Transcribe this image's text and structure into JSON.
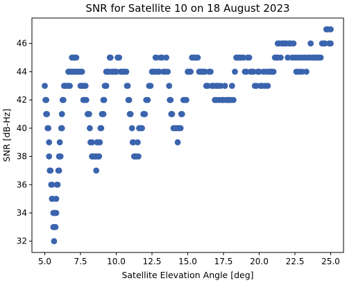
{
  "chart_data": {
    "type": "scatter",
    "title": "SNR for Satellite 10 on 18 August 2023",
    "xlabel": "Satellite Elevation Angle [deg]",
    "ylabel": "SNR [dB-Hz]",
    "xlim": [
      4.1,
      25.9
    ],
    "ylim": [
      31.2,
      47.8
    ],
    "x_ticks": [
      5.0,
      7.5,
      10.0,
      12.5,
      15.0,
      17.5,
      20.0,
      22.5,
      25.0
    ],
    "x_tick_labels": [
      "5.0",
      "7.5",
      "10.0",
      "12.5",
      "15.0",
      "17.5",
      "20.0",
      "22.5",
      "25.0"
    ],
    "y_ticks": [
      32,
      34,
      36,
      38,
      40,
      42,
      44,
      46
    ],
    "y_tick_labels": [
      "32",
      "34",
      "36",
      "38",
      "40",
      "42",
      "44",
      "46"
    ],
    "grid": false,
    "marker_color": "#3a64ad",
    "points": [
      [
        5.0,
        43
      ],
      [
        5.05,
        42
      ],
      [
        5.1,
        42
      ],
      [
        5.1,
        41
      ],
      [
        5.15,
        41
      ],
      [
        5.2,
        40
      ],
      [
        5.25,
        40
      ],
      [
        5.3,
        39
      ],
      [
        5.3,
        38
      ],
      [
        5.35,
        37
      ],
      [
        5.4,
        37
      ],
      [
        5.45,
        36
      ],
      [
        5.5,
        36
      ],
      [
        5.5,
        35
      ],
      [
        5.55,
        35
      ],
      [
        5.6,
        34
      ],
      [
        5.6,
        33
      ],
      [
        5.65,
        33
      ],
      [
        5.65,
        32
      ],
      [
        5.7,
        34
      ],
      [
        5.75,
        33
      ],
      [
        5.8,
        34
      ],
      [
        5.8,
        35
      ],
      [
        5.85,
        36
      ],
      [
        5.9,
        36
      ],
      [
        5.95,
        37
      ],
      [
        6.0,
        37
      ],
      [
        6.0,
        38
      ],
      [
        6.05,
        39
      ],
      [
        6.1,
        38
      ],
      [
        6.15,
        40
      ],
      [
        6.2,
        40
      ],
      [
        6.2,
        41
      ],
      [
        6.25,
        42
      ],
      [
        6.3,
        42
      ],
      [
        6.35,
        43
      ],
      [
        6.4,
        43
      ],
      [
        6.5,
        43
      ],
      [
        6.6,
        43
      ],
      [
        6.65,
        44
      ],
      [
        6.7,
        44
      ],
      [
        6.75,
        43
      ],
      [
        6.8,
        44
      ],
      [
        6.85,
        44
      ],
      [
        6.9,
        45
      ],
      [
        7.0,
        45
      ],
      [
        7.1,
        45
      ],
      [
        7.2,
        45
      ],
      [
        7.0,
        44
      ],
      [
        7.1,
        44
      ],
      [
        7.2,
        44
      ],
      [
        7.3,
        44
      ],
      [
        7.4,
        44
      ],
      [
        7.5,
        44
      ],
      [
        7.6,
        44
      ],
      [
        7.5,
        43
      ],
      [
        7.6,
        43
      ],
      [
        7.7,
        43
      ],
      [
        7.7,
        42
      ],
      [
        7.8,
        42
      ],
      [
        7.85,
        43
      ],
      [
        7.9,
        42
      ],
      [
        8.0,
        41
      ],
      [
        8.1,
        41
      ],
      [
        8.15,
        40
      ],
      [
        8.2,
        39
      ],
      [
        8.3,
        38
      ],
      [
        8.3,
        39
      ],
      [
        8.4,
        38
      ],
      [
        8.5,
        38
      ],
      [
        8.6,
        38
      ],
      [
        8.6,
        37
      ],
      [
        8.65,
        39
      ],
      [
        8.7,
        39
      ],
      [
        8.75,
        38
      ],
      [
        8.8,
        38
      ],
      [
        8.85,
        39
      ],
      [
        8.9,
        40
      ],
      [
        8.95,
        40
      ],
      [
        9.0,
        41
      ],
      [
        9.1,
        41
      ],
      [
        9.1,
        42
      ],
      [
        9.15,
        42
      ],
      [
        9.2,
        43
      ],
      [
        9.3,
        43
      ],
      [
        9.3,
        44
      ],
      [
        9.4,
        44
      ],
      [
        9.5,
        44
      ],
      [
        9.55,
        45
      ],
      [
        9.6,
        45
      ],
      [
        9.7,
        44
      ],
      [
        9.8,
        44
      ],
      [
        9.9,
        44
      ],
      [
        10.0,
        44
      ],
      [
        10.1,
        45
      ],
      [
        10.2,
        45
      ],
      [
        10.3,
        44
      ],
      [
        10.4,
        44
      ],
      [
        10.5,
        44
      ],
      [
        10.6,
        44
      ],
      [
        10.7,
        44
      ],
      [
        10.75,
        43
      ],
      [
        10.8,
        43
      ],
      [
        10.85,
        42
      ],
      [
        10.9,
        42
      ],
      [
        10.95,
        41
      ],
      [
        11.0,
        41
      ],
      [
        11.1,
        40
      ],
      [
        11.15,
        39
      ],
      [
        11.2,
        39
      ],
      [
        11.25,
        38
      ],
      [
        11.3,
        38
      ],
      [
        11.35,
        38
      ],
      [
        11.4,
        38
      ],
      [
        11.5,
        39
      ],
      [
        11.55,
        38
      ],
      [
        11.6,
        40
      ],
      [
        11.7,
        40
      ],
      [
        11.8,
        40
      ],
      [
        11.9,
        41
      ],
      [
        12.0,
        41
      ],
      [
        12.1,
        42
      ],
      [
        12.2,
        42
      ],
      [
        12.3,
        43
      ],
      [
        12.4,
        43
      ],
      [
        12.5,
        44
      ],
      [
        12.6,
        44
      ],
      [
        12.7,
        44
      ],
      [
        12.75,
        45
      ],
      [
        12.8,
        45
      ],
      [
        12.9,
        44
      ],
      [
        13.0,
        44
      ],
      [
        13.1,
        45
      ],
      [
        13.2,
        45
      ],
      [
        13.3,
        44
      ],
      [
        13.4,
        44
      ],
      [
        13.5,
        45
      ],
      [
        13.6,
        44
      ],
      [
        13.7,
        43
      ],
      [
        13.75,
        42
      ],
      [
        13.8,
        42
      ],
      [
        13.85,
        41
      ],
      [
        13.9,
        41
      ],
      [
        14.0,
        40
      ],
      [
        14.1,
        40
      ],
      [
        14.2,
        40
      ],
      [
        14.3,
        39
      ],
      [
        14.3,
        40
      ],
      [
        14.4,
        40
      ],
      [
        14.5,
        40
      ],
      [
        14.55,
        41
      ],
      [
        14.6,
        41
      ],
      [
        14.7,
        42
      ],
      [
        14.8,
        42
      ],
      [
        14.9,
        42
      ],
      [
        15.0,
        44
      ],
      [
        15.1,
        44
      ],
      [
        15.2,
        44
      ],
      [
        15.3,
        45
      ],
      [
        15.4,
        45
      ],
      [
        15.5,
        45
      ],
      [
        15.6,
        45
      ],
      [
        15.7,
        45
      ],
      [
        15.8,
        44
      ],
      [
        15.9,
        44
      ],
      [
        16.0,
        44
      ],
      [
        16.1,
        44
      ],
      [
        16.2,
        44
      ],
      [
        16.3,
        43
      ],
      [
        16.4,
        43
      ],
      [
        16.5,
        44
      ],
      [
        16.6,
        44
      ],
      [
        16.7,
        43
      ],
      [
        16.8,
        43
      ],
      [
        16.9,
        42
      ],
      [
        17.0,
        42
      ],
      [
        17.0,
        43
      ],
      [
        17.1,
        43
      ],
      [
        17.2,
        42
      ],
      [
        17.3,
        43
      ],
      [
        17.4,
        42
      ],
      [
        17.5,
        42
      ],
      [
        17.6,
        43
      ],
      [
        17.7,
        42
      ],
      [
        17.8,
        42
      ],
      [
        17.9,
        42
      ],
      [
        18.0,
        42
      ],
      [
        18.1,
        43
      ],
      [
        18.2,
        42
      ],
      [
        18.3,
        44
      ],
      [
        18.4,
        45
      ],
      [
        18.5,
        45
      ],
      [
        18.6,
        45
      ],
      [
        18.7,
        45
      ],
      [
        18.8,
        45
      ],
      [
        18.9,
        45
      ],
      [
        19.0,
        44
      ],
      [
        19.1,
        44
      ],
      [
        19.2,
        45
      ],
      [
        19.3,
        45
      ],
      [
        19.4,
        44
      ],
      [
        19.5,
        44
      ],
      [
        19.6,
        44
      ],
      [
        19.7,
        43
      ],
      [
        19.8,
        43
      ],
      [
        19.9,
        44
      ],
      [
        20.0,
        44
      ],
      [
        20.1,
        43
      ],
      [
        20.2,
        43
      ],
      [
        20.3,
        44
      ],
      [
        20.4,
        43
      ],
      [
        20.5,
        44
      ],
      [
        20.6,
        43
      ],
      [
        20.7,
        44
      ],
      [
        20.8,
        44
      ],
      [
        20.9,
        44
      ],
      [
        21.0,
        44
      ],
      [
        21.1,
        45
      ],
      [
        21.2,
        45
      ],
      [
        21.3,
        45
      ],
      [
        21.3,
        46
      ],
      [
        21.4,
        46
      ],
      [
        21.5,
        45
      ],
      [
        21.6,
        46
      ],
      [
        21.7,
        46
      ],
      [
        21.8,
        46
      ],
      [
        21.9,
        46
      ],
      [
        22.0,
        45
      ],
      [
        22.1,
        46
      ],
      [
        22.2,
        46
      ],
      [
        22.3,
        45
      ],
      [
        22.4,
        46
      ],
      [
        22.5,
        45
      ],
      [
        22.6,
        44
      ],
      [
        22.7,
        45
      ],
      [
        22.8,
        44
      ],
      [
        22.9,
        45
      ],
      [
        23.0,
        44
      ],
      [
        23.1,
        45
      ],
      [
        23.2,
        45
      ],
      [
        23.3,
        44
      ],
      [
        23.4,
        45
      ],
      [
        23.5,
        45
      ],
      [
        23.6,
        46
      ],
      [
        23.7,
        45
      ],
      [
        23.8,
        45
      ],
      [
        23.9,
        45
      ],
      [
        24.0,
        45
      ],
      [
        24.1,
        45
      ],
      [
        24.2,
        45
      ],
      [
        24.3,
        45
      ],
      [
        24.4,
        46
      ],
      [
        24.5,
        46
      ],
      [
        24.6,
        46
      ],
      [
        24.7,
        47
      ],
      [
        24.8,
        47
      ],
      [
        24.9,
        46
      ],
      [
        25.0,
        47
      ],
      [
        25.0,
        46
      ]
    ]
  }
}
